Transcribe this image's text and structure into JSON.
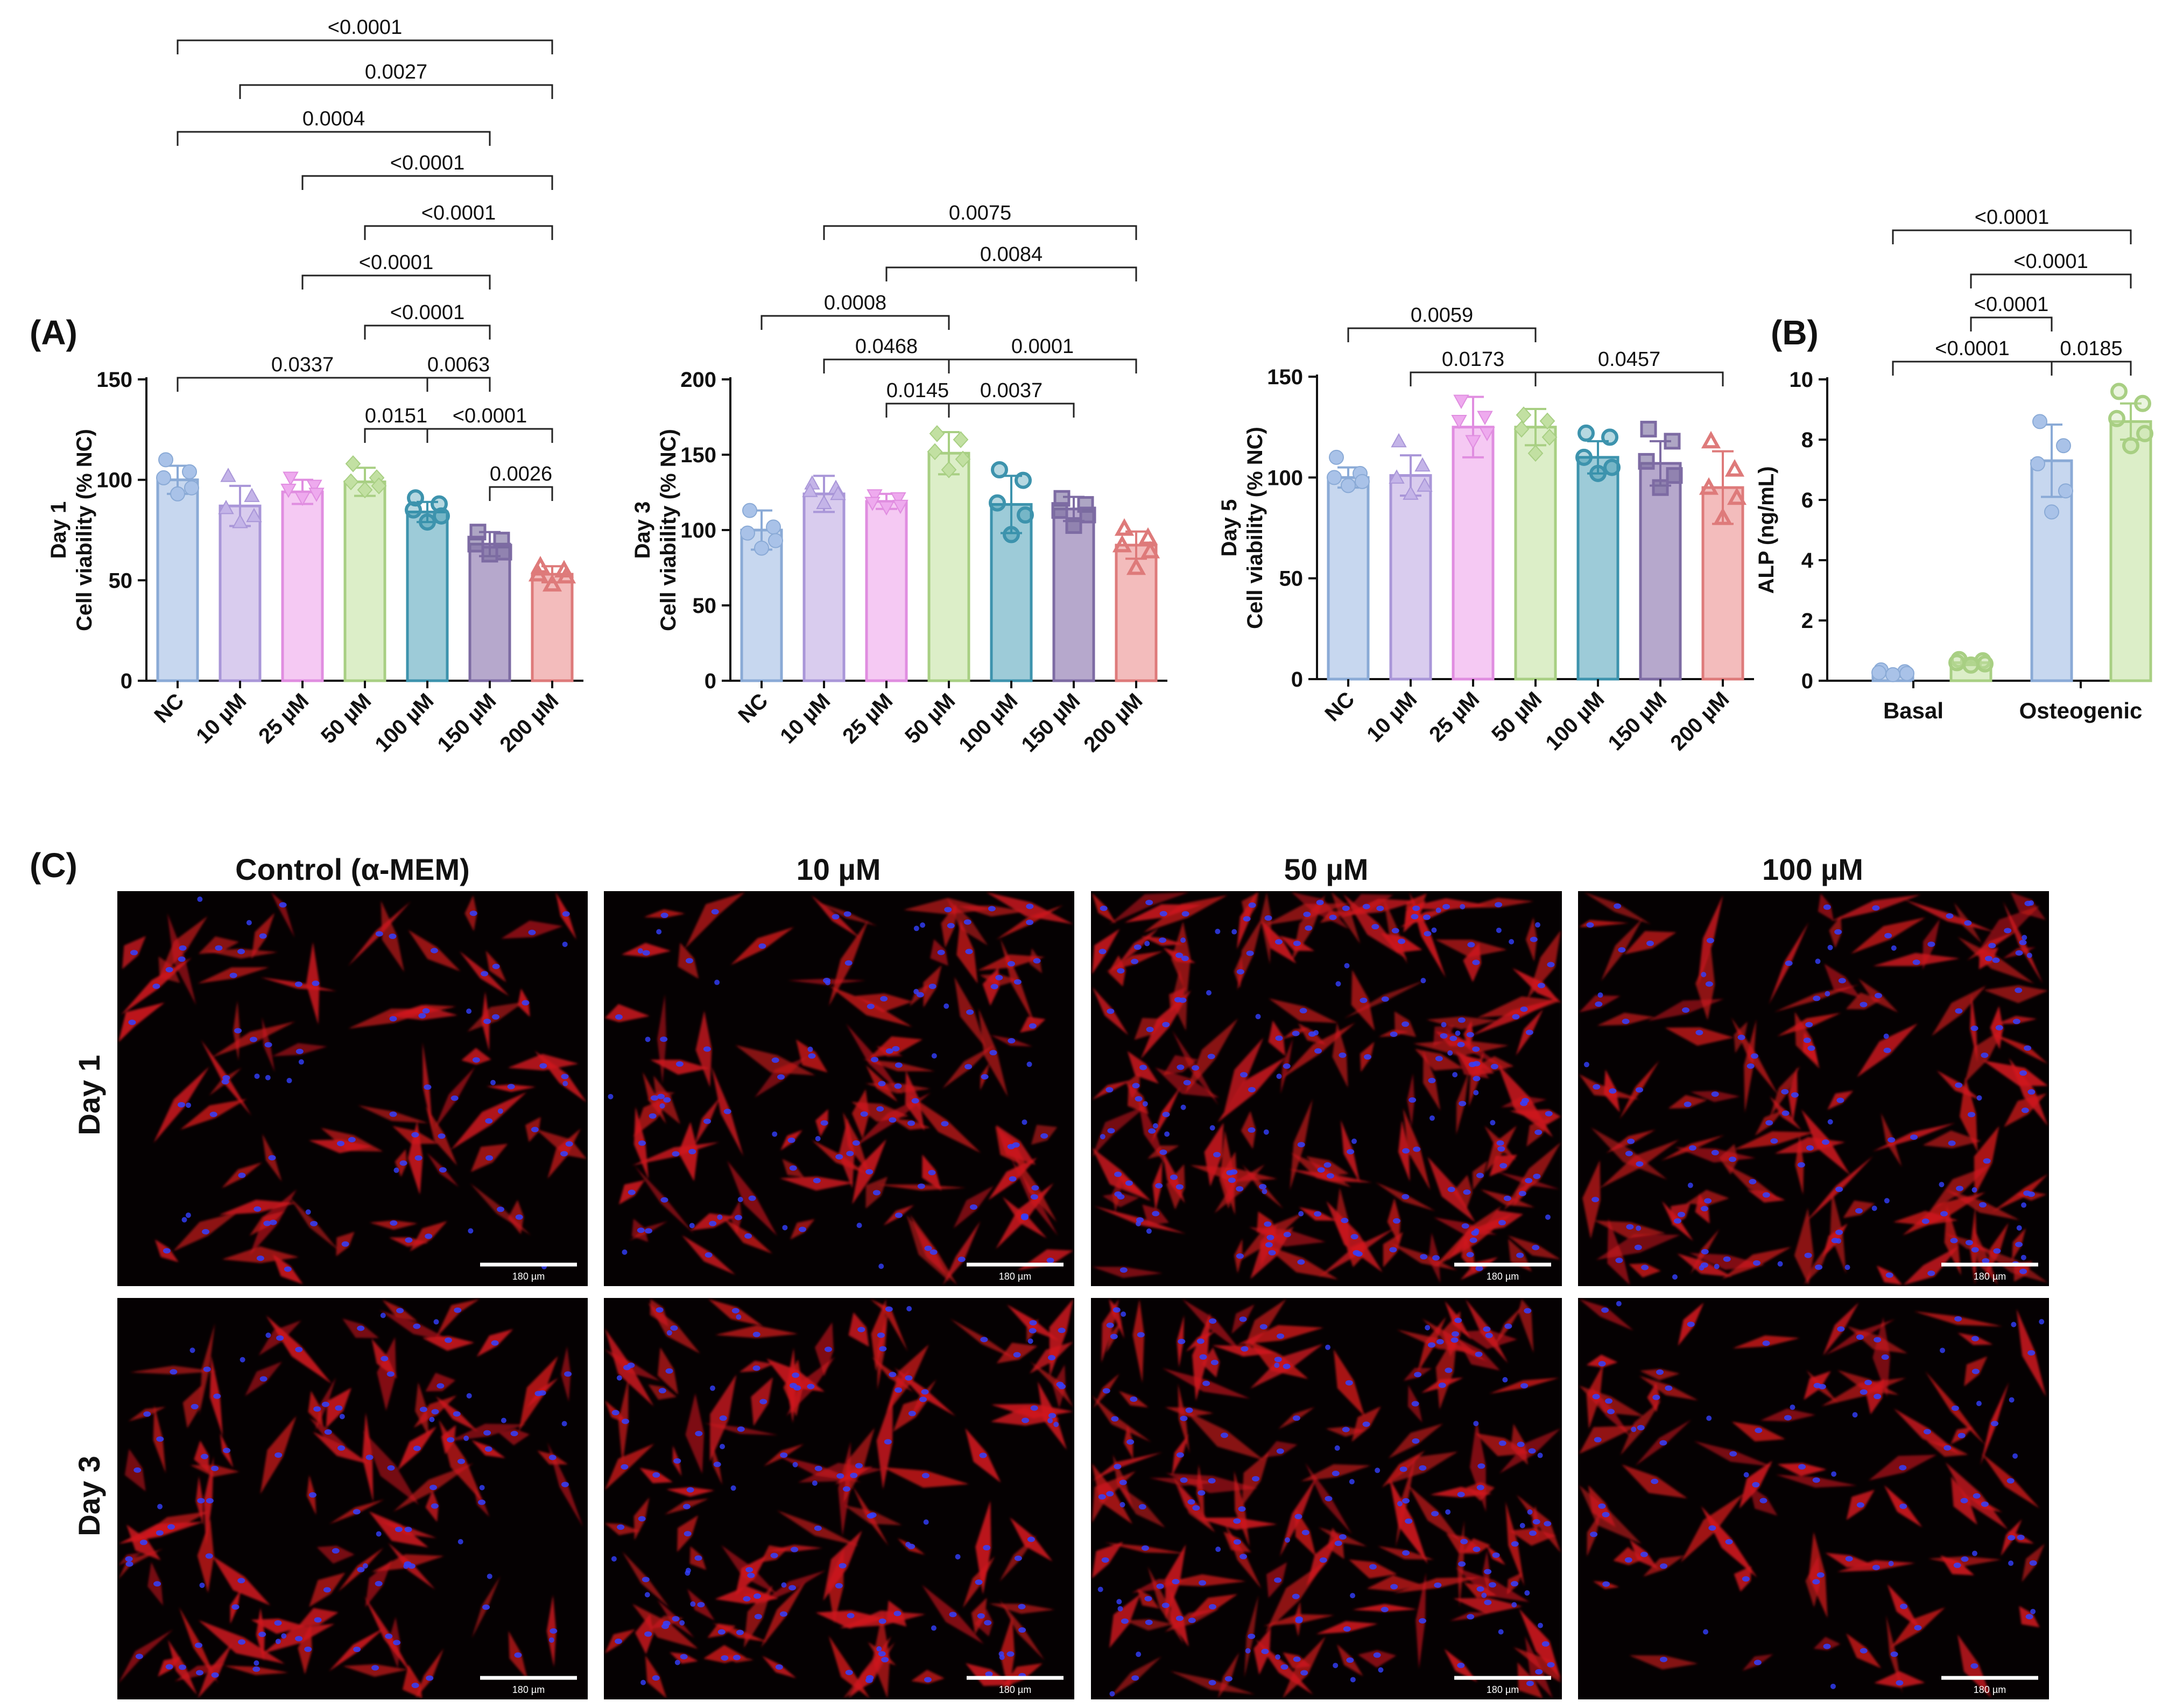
{
  "panel_labels": {
    "a": "(A)",
    "b": "(B)",
    "c": "(C)"
  },
  "chart_data": [
    {
      "panel": "A",
      "type": "bar",
      "title": "",
      "xlabel": "",
      "ylabel": "Day 1\nCell viability  (% NC)",
      "ylabel_lines": [
        "Day 1",
        "Cell viability  (% NC)"
      ],
      "categories": [
        "NC",
        "10 µM",
        "25 µM",
        "50 µM",
        "100 µM",
        "150 µM",
        "200 µM"
      ],
      "values": [
        100,
        87,
        94,
        99,
        84,
        68,
        53
      ],
      "errors": [
        7,
        10,
        6,
        7,
        5,
        6,
        4
      ],
      "points": [
        [
          110,
          104,
          101,
          96,
          93
        ],
        [
          102,
          92,
          86,
          82,
          79
        ],
        [
          101,
          97,
          95,
          93,
          91
        ],
        [
          108,
          101,
          99,
          97,
          95
        ],
        [
          91,
          88,
          85,
          82,
          79
        ],
        [
          74,
          70,
          68,
          64,
          63
        ],
        [
          57,
          55,
          53,
          52,
          48
        ]
      ],
      "markers": [
        "circle",
        "triangle",
        "inv-triangle",
        "diamond",
        "hex-circle",
        "square",
        "triangle-open"
      ],
      "ylim": [
        0,
        150
      ],
      "yticks": [
        0,
        50,
        100,
        150
      ],
      "grid": false,
      "comparisons": [
        {
          "i": 0,
          "j": 6,
          "label": "<0.0001"
        },
        {
          "i": 1,
          "j": 6,
          "label": "0.0027"
        },
        {
          "i": 0,
          "j": 5,
          "label": "0.0004"
        },
        {
          "i": 2,
          "j": 6,
          "label": "<0.0001"
        },
        {
          "i": 3,
          "j": 6,
          "label": "<0.0001"
        },
        {
          "i": 2,
          "j": 5,
          "label": "<0.0001"
        },
        {
          "i": 3,
          "j": 5,
          "label": "<0.0001"
        },
        {
          "i": 0,
          "j": 4,
          "label": "0.0337"
        },
        {
          "i": 4,
          "j": 5,
          "label": "0.0063"
        },
        {
          "i": 3,
          "j": 4,
          "label": "0.0151"
        },
        {
          "i": 4,
          "j": 6,
          "label": "<0.0001"
        },
        {
          "i": 5,
          "j": 6,
          "label": "0.0026"
        }
      ]
    },
    {
      "panel": "A",
      "type": "bar",
      "title": "",
      "xlabel": "",
      "ylabel": "Day 3\nCell viability  (% NC)",
      "ylabel_lines": [
        "Day 3",
        "Cell viability  (% NC)"
      ],
      "categories": [
        "NC",
        "10 µM",
        "25 µM",
        "50 µM",
        "100 µM",
        "150 µM",
        "200 µM"
      ],
      "values": [
        100,
        124,
        119,
        151,
        117,
        114,
        90
      ],
      "errors": [
        13,
        12,
        5,
        14,
        19,
        8,
        9
      ],
      "points": [
        [
          113,
          102,
          98,
          93,
          88
        ],
        [
          131,
          128,
          126,
          124,
          118
        ],
        [
          123,
          121,
          118,
          116,
          115
        ],
        [
          164,
          160,
          152,
          147,
          140
        ],
        [
          140,
          133,
          118,
          110,
          97
        ],
        [
          121,
          117,
          113,
          110,
          103
        ],
        [
          101,
          95,
          90,
          86,
          75
        ]
      ],
      "markers": [
        "circle",
        "triangle",
        "inv-triangle",
        "diamond",
        "hex-circle",
        "square",
        "triangle-open"
      ],
      "ylim": [
        0,
        200
      ],
      "yticks": [
        0,
        50,
        100,
        150,
        200
      ],
      "grid": false,
      "comparisons": [
        {
          "i": 1,
          "j": 6,
          "label": "0.0075"
        },
        {
          "i": 2,
          "j": 6,
          "label": "0.0084"
        },
        {
          "i": 0,
          "j": 3,
          "label": "0.0008"
        },
        {
          "i": 1,
          "j": 3,
          "label": "0.0468"
        },
        {
          "i": 3,
          "j": 6,
          "label": "0.0001"
        },
        {
          "i": 2,
          "j": 3,
          "label": "0.0145"
        },
        {
          "i": 3,
          "j": 5,
          "label": "0.0037"
        }
      ]
    },
    {
      "panel": "A",
      "type": "bar",
      "title": "",
      "xlabel": "",
      "ylabel": "Day 5\nCell viability  (% NC)",
      "ylabel_lines": [
        "Day 5",
        "Cell viability  (% NC)"
      ],
      "categories": [
        "NC",
        "10 µM",
        "25 µM",
        "50 µM",
        "100 µM",
        "150 µM",
        "200 µM"
      ],
      "values": [
        100,
        101,
        125,
        125,
        110,
        107,
        95
      ],
      "errors": [
        5,
        10,
        15,
        9,
        8,
        11,
        18
      ],
      "points": [
        [
          110,
          102,
          100,
          98,
          96
        ],
        [
          118,
          106,
          100,
          96,
          92
        ],
        [
          138,
          130,
          128,
          122,
          118
        ],
        [
          131,
          128,
          124,
          120,
          112
        ],
        [
          122,
          120,
          110,
          105,
          102
        ],
        [
          124,
          118,
          108,
          101,
          95
        ],
        [
          118,
          104,
          95,
          90,
          80
        ]
      ],
      "markers": [
        "circle",
        "triangle",
        "inv-triangle",
        "diamond",
        "hex-circle",
        "square",
        "triangle-open"
      ],
      "ylim": [
        0,
        150
      ],
      "yticks": [
        0,
        50,
        100,
        150
      ],
      "grid": false,
      "comparisons": [
        {
          "i": 0,
          "j": 3,
          "label": "0.0059"
        },
        {
          "i": 1,
          "j": 3,
          "label": "0.0173"
        },
        {
          "i": 3,
          "j": 6,
          "label": "0.0457"
        }
      ]
    },
    {
      "panel": "B",
      "type": "bar",
      "title": "",
      "xlabel": "",
      "ylabel": "ALP (ng/mL)",
      "categories": [
        "Basal",
        "Osteogenic"
      ],
      "series": [
        {
          "values": [
            0.28,
            7.3
          ],
          "errors": [
            0.08,
            1.2
          ],
          "points": [
            [
              0.36,
              0.3,
              0.27,
              0.24,
              0.2
            ],
            [
              8.6,
              7.8,
              7.2,
              6.3,
              5.6
            ]
          ]
        },
        {
          "values": [
            0.6,
            8.6
          ],
          "errors": [
            0.08,
            0.6
          ],
          "points": [
            [
              0.7,
              0.66,
              0.6,
              0.56,
              0.52
            ],
            [
              9.6,
              9.2,
              8.7,
              8.2,
              7.8
            ]
          ]
        }
      ],
      "ylim": [
        0,
        10
      ],
      "yticks": [
        0,
        2,
        4,
        6,
        8,
        10
      ],
      "grid": false,
      "comparisons": [
        {
          "a": "b1",
          "b": "b4",
          "label": "<0.0001"
        },
        {
          "a": "b2",
          "b": "b4",
          "label": "<0.0001"
        },
        {
          "a": "b2",
          "b": "b3",
          "label": "<0.0001"
        },
        {
          "a": "b1",
          "b": "b3",
          "label": "<0.0001"
        },
        {
          "a": "b3",
          "b": "b4",
          "label": "0.0185"
        }
      ]
    }
  ],
  "colors": {
    "fills": [
      "#c7d7ef",
      "#d9ccee",
      "#f5c9f3",
      "#dceec8",
      "#9dcbd8",
      "#b6a8cc",
      "#f3bcbc"
    ],
    "strokes": [
      "#8aaad6",
      "#a996d8",
      "#e08de0",
      "#a8cf83",
      "#3d93ad",
      "#7d6ba3",
      "#de7a7a"
    ],
    "marker_colors": [
      "#a9c2e8",
      "#c4b4e8",
      "#eeaaee",
      "#c2e0a2",
      "#2f8ea8",
      "#786a9c",
      "#e06f6f"
    ],
    "micrograph_bg": "#050102",
    "actin": "#d0191d",
    "nuclei": "#3340ff"
  },
  "micrographs": {
    "column_headers": [
      "Control (α-MEM)",
      "10 µM",
      "50 µM",
      "100 µM"
    ],
    "row_headers": [
      "Day 1",
      "Day 3"
    ],
    "scale_bar_label": "180 µm",
    "stain_colors": [
      "red",
      "blue"
    ]
  }
}
